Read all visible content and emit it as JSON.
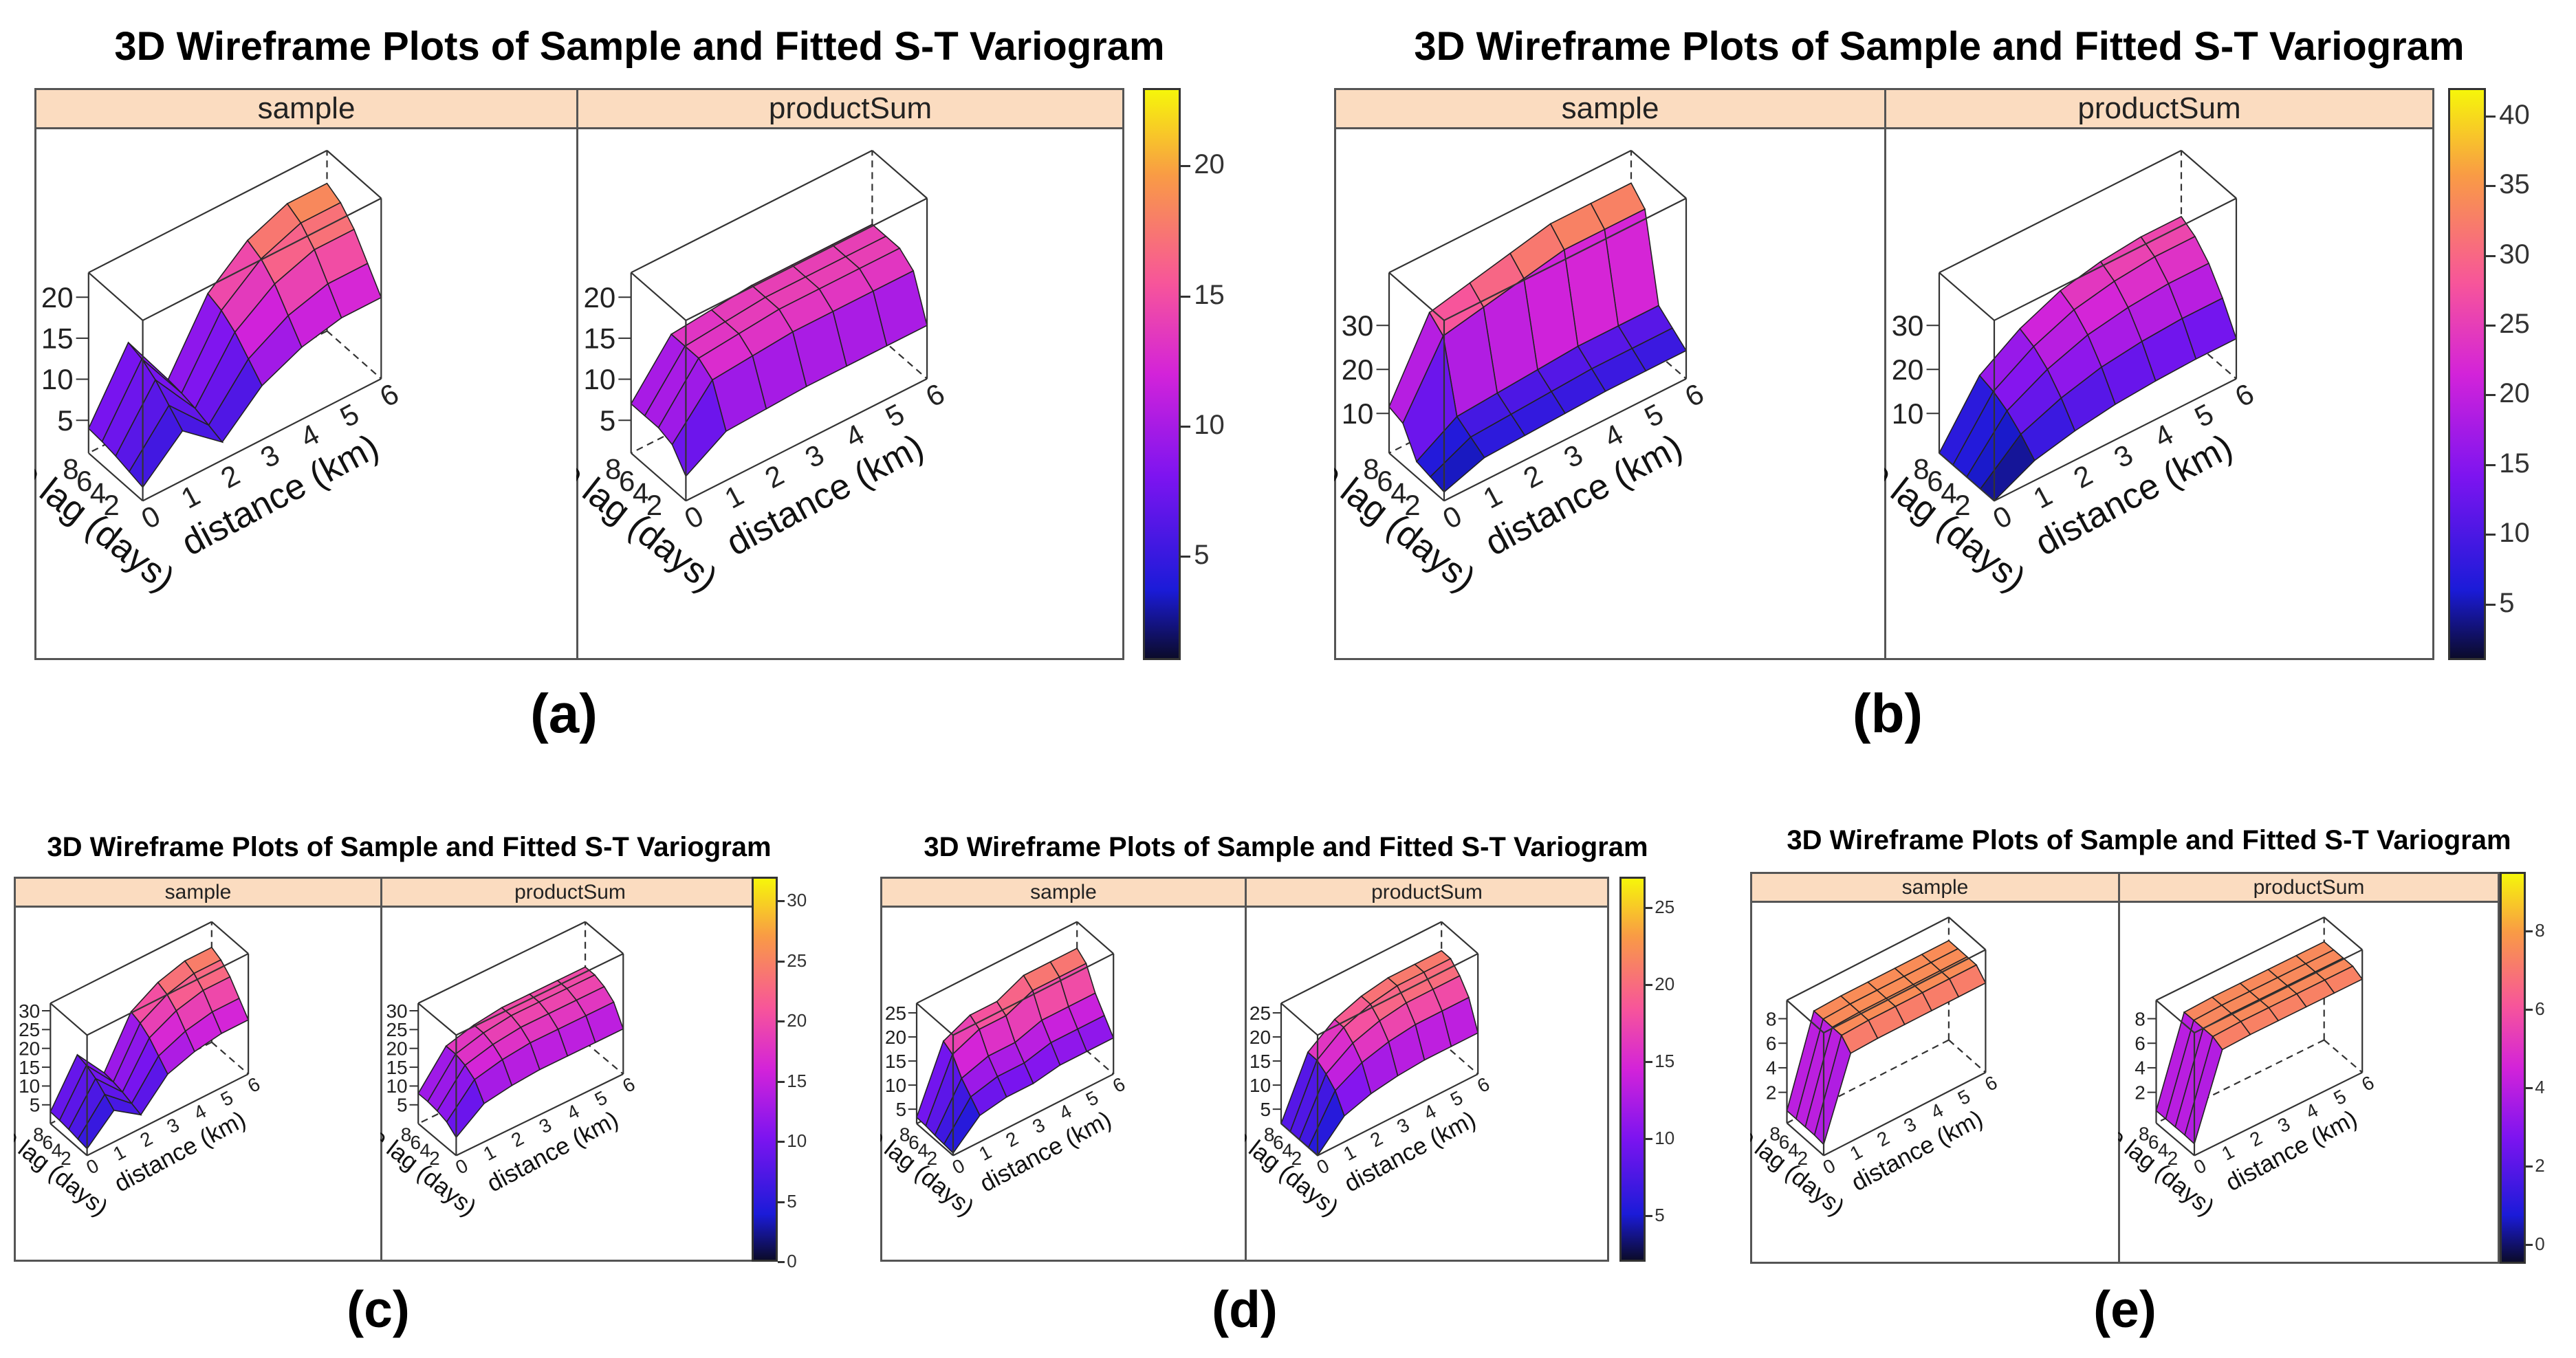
{
  "figures": [
    {
      "id": "a",
      "label": "(a)",
      "title": "3D Wireframe Plots of Sample and Fitted S-T Variogram",
      "panels": [
        {
          "name": "sample",
          "zticks": [
            "20",
            "15",
            "10",
            "5"
          ]
        },
        {
          "name": "productSum",
          "zticks": [
            "20",
            "15",
            "10",
            "5"
          ]
        }
      ],
      "colorbar": {
        "ticks": [
          "20",
          "15",
          "10",
          "5"
        ]
      }
    },
    {
      "id": "b",
      "label": "(b)",
      "title": "3D Wireframe Plots of Sample and Fitted S-T Variogram",
      "panels": [
        {
          "name": "sample",
          "zticks": [
            "30",
            "20",
            "10"
          ]
        },
        {
          "name": "productSum",
          "zticks": [
            "30",
            "20",
            "10"
          ]
        }
      ],
      "colorbar": {
        "ticks": [
          "40",
          "35",
          "30",
          "25",
          "20",
          "15",
          "10",
          "5"
        ]
      }
    },
    {
      "id": "c",
      "label": "(c)",
      "title": "3D Wireframe Plots of Sample and Fitted S-T Variogram",
      "panels": [
        {
          "name": "sample",
          "zticks": [
            "30",
            "25",
            "20",
            "15",
            "10",
            "5"
          ]
        },
        {
          "name": "productSum",
          "zticks": [
            "30",
            "25",
            "20",
            "15",
            "10",
            "5"
          ]
        }
      ],
      "colorbar": {
        "ticks": [
          "30",
          "25",
          "20",
          "15",
          "10",
          "5",
          "0"
        ]
      }
    },
    {
      "id": "d",
      "label": "(d)",
      "title": "3D Wireframe Plots of Sample and Fitted S-T Variogram",
      "panels": [
        {
          "name": "sample",
          "zticks": [
            "25",
            "20",
            "15",
            "10",
            "5"
          ]
        },
        {
          "name": "productSum",
          "zticks": [
            "25",
            "20",
            "15",
            "10",
            "5"
          ]
        }
      ],
      "colorbar": {
        "ticks": [
          "25",
          "20",
          "15",
          "10",
          "5"
        ]
      }
    },
    {
      "id": "e",
      "label": "(e)",
      "title": "3D Wireframe Plots of Sample and Fitted S-T Variogram",
      "panels": [
        {
          "name": "sample",
          "zticks": [
            "8",
            "6",
            "4",
            "2"
          ]
        },
        {
          "name": "productSum",
          "zticks": [
            "8",
            "6",
            "4",
            "2"
          ]
        }
      ],
      "colorbar": {
        "ticks": [
          "8",
          "6",
          "4",
          "2",
          "0"
        ]
      }
    }
  ],
  "axes": {
    "time_label": "time lag (days)",
    "distance_label": "distance (km)",
    "time_ticks": [
      "2",
      "4",
      "6",
      "8"
    ],
    "distance_ticks": [
      "0",
      "1",
      "2",
      "3",
      "4",
      "5",
      "6"
    ]
  },
  "chart_data": [
    {
      "figure": "a",
      "type": "wireframe-3d",
      "title": "3D Wireframe Plots of Sample and Fitted S-T Variogram",
      "panels": [
        "sample",
        "productSum"
      ],
      "xlabel": "distance (km)",
      "ylabel": "time lag (days)",
      "zlim": [
        1,
        23
      ],
      "colorbar_ticks": [
        5,
        10,
        15,
        20
      ],
      "series": [
        {
          "name": "sample",
          "profile": [
            4,
            12,
            5,
            13,
            17,
            19,
            19
          ],
          "time_ramp": [
            0.55,
            0.7,
            0.85,
            0.95,
            1
          ]
        },
        {
          "name": "productSum",
          "profile": [
            7,
            13,
            13.5,
            14,
            14,
            14,
            14
          ],
          "time_ramp": [
            0.5,
            0.9,
            1,
            1,
            1
          ]
        }
      ]
    },
    {
      "figure": "b",
      "type": "wireframe-3d",
      "title": "3D Wireframe Plots of Sample and Fitted S-T Variogram",
      "panels": [
        "sample",
        "productSum"
      ],
      "xlabel": "distance (km)",
      "ylabel": "time lag (days)",
      "zlim": [
        1,
        42
      ],
      "colorbar_ticks": [
        5,
        10,
        15,
        20,
        25,
        30,
        35,
        40
      ],
      "series": [
        {
          "name": "sample",
          "profile": [
            6,
            14,
            15,
            16,
            17,
            17,
            17
          ],
          "time_ramp": [
            0.4,
            0.55,
            0.7,
            1.9,
            2.1
          ]
        },
        {
          "name": "productSum",
          "profile": [
            1,
            14,
            20,
            24,
            26,
            27,
            27
          ],
          "time_ramp": [
            0.35,
            0.6,
            0.8,
            0.93,
            1
          ]
        }
      ]
    },
    {
      "figure": "c",
      "type": "wireframe-3d",
      "title": "3D Wireframe Plots of Sample and Fitted S-T Variogram",
      "panels": [
        "sample",
        "productSum"
      ],
      "xlabel": "distance (km)",
      "ylabel": "time lag (days)",
      "zlim": [
        0,
        32
      ],
      "colorbar_ticks": [
        0,
        5,
        10,
        15,
        20,
        25,
        30
      ],
      "series": [
        {
          "name": "sample",
          "profile": [
            3,
            14,
            6,
            18,
            22,
            24,
            24
          ],
          "time_ramp": [
            0.6,
            0.75,
            0.9,
            1,
            1.05
          ]
        },
        {
          "name": "productSum",
          "profile": [
            8,
            17,
            19,
            20,
            20,
            20,
            20
          ],
          "time_ramp": [
            0.6,
            0.85,
            0.95,
            1,
            1
          ]
        }
      ]
    },
    {
      "figure": "d",
      "type": "wireframe-3d",
      "title": "3D Wireframe Plots of Sample and Fitted S-T Variogram",
      "panels": [
        "sample",
        "productSum"
      ],
      "xlabel": "distance (km)",
      "ylabel": "time lag (days)",
      "zlim": [
        2,
        27
      ],
      "colorbar_ticks": [
        5,
        10,
        15,
        20,
        25
      ],
      "series": [
        {
          "name": "sample",
          "profile": [
            3,
            13,
            15,
            15,
            17,
            17,
            17
          ],
          "time_ramp": [
            0.5,
            0.7,
            0.9,
            1.2,
            1.3
          ]
        },
        {
          "name": "productSum",
          "profile": [
            2,
            14,
            18,
            20,
            21,
            21,
            21
          ],
          "time_ramp": [
            0.45,
            0.75,
            0.9,
            1,
            1
          ]
        }
      ]
    },
    {
      "figure": "e",
      "type": "wireframe-3d",
      "title": "3D Wireframe Plots of Sample and Fitted S-T Variogram",
      "panels": [
        "sample",
        "productSum"
      ],
      "xlabel": "distance (km)",
      "ylabel": "time lag (days)",
      "zlim": [
        -0.5,
        9.5
      ],
      "colorbar_ticks": [
        0,
        2,
        4,
        6,
        8
      ],
      "series": [
        {
          "name": "sample",
          "profile": [
            0.5,
            7.5,
            7.6,
            7.6,
            7.6,
            7.6,
            7.6
          ],
          "time_ramp": [
            0.9,
            1,
            1,
            1,
            1
          ]
        },
        {
          "name": "productSum",
          "profile": [
            0.5,
            7.4,
            7.5,
            7.5,
            7.5,
            7.5,
            7.5
          ],
          "time_ramp": [
            0.95,
            1,
            1,
            1,
            1
          ]
        }
      ]
    }
  ]
}
